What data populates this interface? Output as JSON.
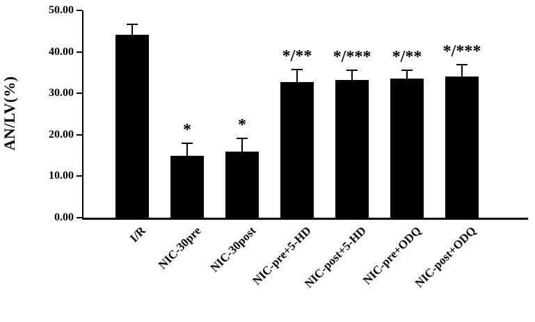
{
  "chart_data": {
    "type": "bar",
    "title": "",
    "xlabel": "",
    "ylabel": "AN/LV(%)",
    "ylim": [
      0,
      50
    ],
    "ytick_step": 10,
    "ytick_labels": [
      "0.00",
      "10.00",
      "20.00",
      "30.00",
      "40.00",
      "50.00"
    ],
    "grid": false,
    "legend": "none",
    "bar_color": "#000000",
    "categories": [
      "I/R",
      "NIC-30pre",
      "NIC-30post",
      "NIC-pre+5-HD",
      "NIC-post+5-HD",
      "NIC-pre+ODQ",
      "NIC-post+ODQ"
    ],
    "values": [
      44.2,
      15.0,
      16.0,
      32.8,
      33.2,
      33.6,
      34.1
    ],
    "errors": [
      2.5,
      3.0,
      3.2,
      2.9,
      2.4,
      2.0,
      2.8
    ],
    "annotations": [
      "",
      "*",
      "*",
      "*/**",
      "*/***",
      "*/**",
      "*/***"
    ]
  }
}
